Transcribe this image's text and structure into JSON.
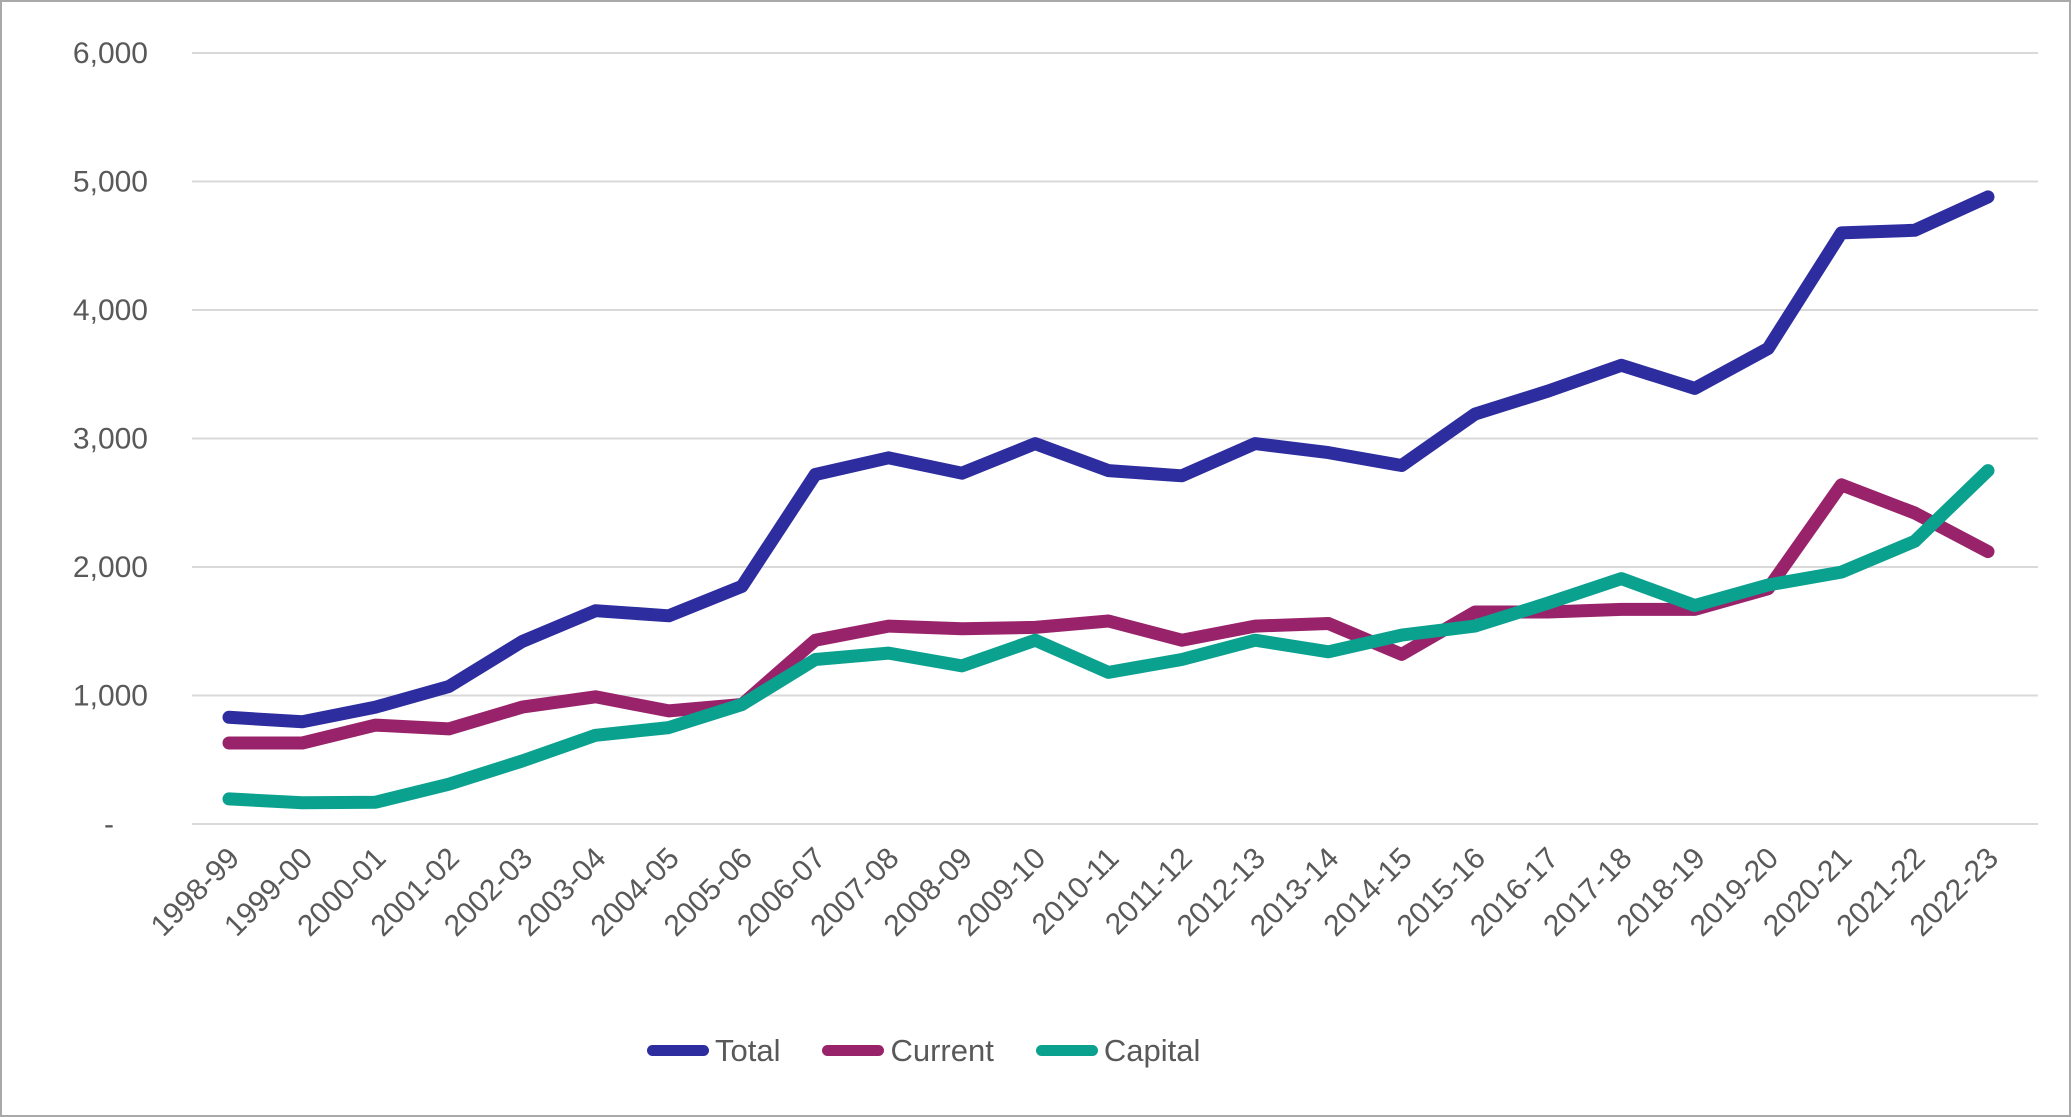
{
  "chart_data": {
    "type": "line",
    "title": "",
    "xlabel": "",
    "ylabel": "",
    "categories": [
      "1998-99",
      "1999-00",
      "2000-01",
      "2001-02",
      "2002-03",
      "2003-04",
      "2004-05",
      "2005-06",
      "2006-07",
      "2007-08",
      "2008-09",
      "2009-10",
      "2010-11",
      "2011-12",
      "2012-13",
      "2013-14",
      "2014-15",
      "2015-16",
      "2016-17",
      "2017-18",
      "2018-19",
      "2019-20",
      "2020-21",
      "2021-22",
      "2022-23"
    ],
    "series": [
      {
        "name": "Total",
        "color": "#2D2D9F",
        "values": [
          830,
          795,
          910,
          1070,
          1420,
          1660,
          1620,
          1850,
          2720,
          2850,
          2730,
          2960,
          2750,
          2710,
          2960,
          2890,
          2790,
          3190,
          3370,
          3570,
          3390,
          3700,
          4600,
          4620,
          4880
        ]
      },
      {
        "name": "Current",
        "color": "#99236A",
        "values": [
          630,
          630,
          770,
          740,
          910,
          990,
          880,
          930,
          1430,
          1540,
          1520,
          1530,
          1580,
          1430,
          1540,
          1560,
          1320,
          1650,
          1650,
          1670,
          1670,
          1830,
          2640,
          2420,
          2120
        ]
      },
      {
        "name": "Capital",
        "color": "#0BA18F",
        "values": [
          195,
          165,
          170,
          310,
          490,
          690,
          750,
          930,
          1280,
          1330,
          1230,
          1430,
          1180,
          1280,
          1430,
          1340,
          1470,
          1540,
          1720,
          1910,
          1700,
          1860,
          1960,
          2200,
          2750
        ]
      }
    ],
    "ylim": [
      0,
      6000
    ],
    "ytick_interval": 1000,
    "ytick_labels": [
      "-",
      "1,000",
      "2,000",
      "3,000",
      "4,000",
      "5,000",
      "6,000"
    ],
    "grid": "horizontal",
    "legend_position": "bottom",
    "x_label_rotation_deg": -45
  },
  "styles": {
    "axis_text_color": "#595959",
    "gridline_color": "#D9D9D9",
    "frame_border_color": "#A9A9A9",
    "background_color": "#FFFFFF"
  }
}
